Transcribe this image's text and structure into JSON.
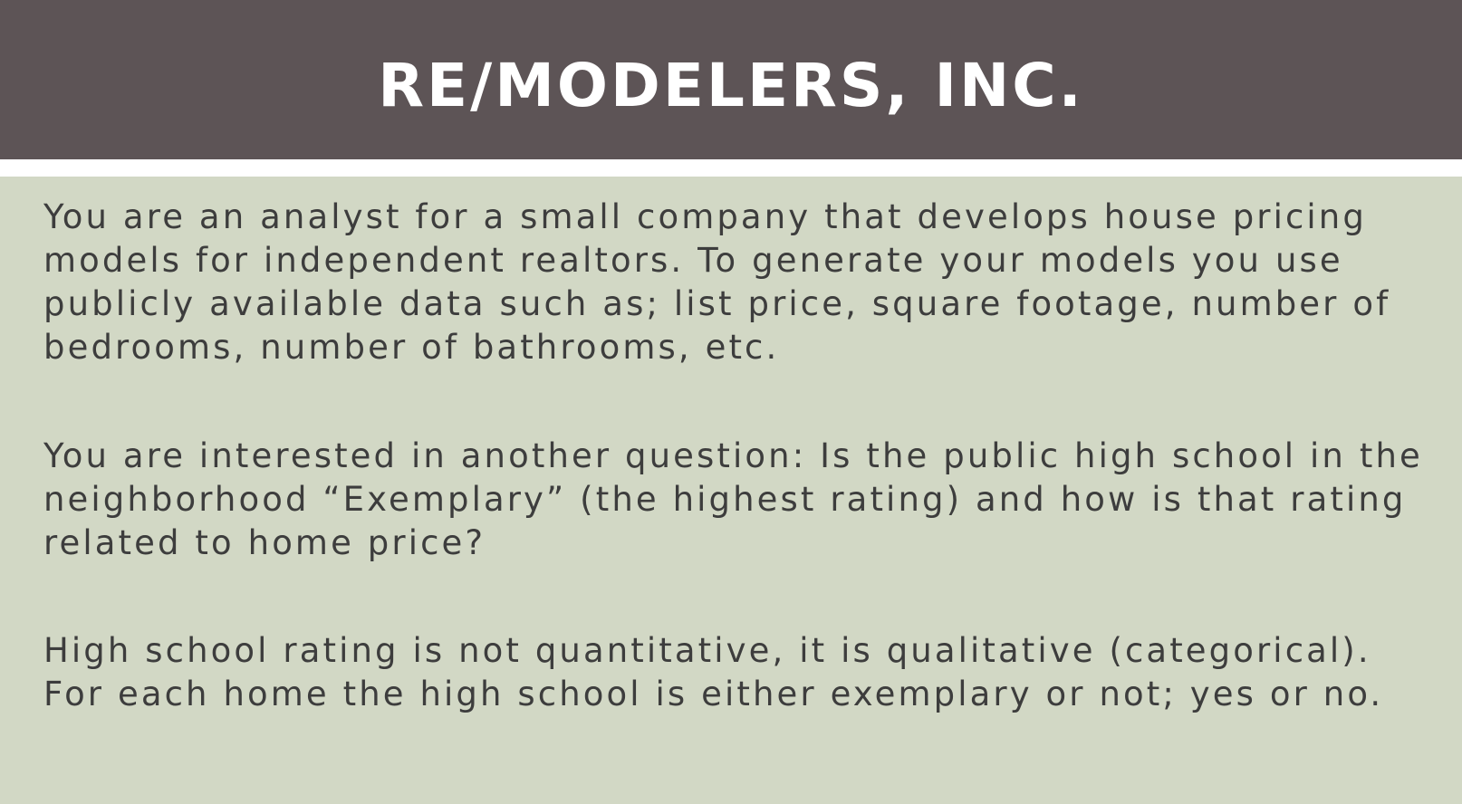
{
  "slide": {
    "title": "RE/MODELERS, INC.",
    "paragraphs": [
      "You are an analyst for a small company that develops house pricing models for independent realtors. To generate your models you use publicly available data such as; list price, square footage, number of bedrooms, number of bathrooms, etc.",
      "You are interested in another question: Is the public high school in the neighborhood “Exemplary” (the highest rating) and how is that rating related to home price?",
      "High school rating is not quantitative, it is qualitative (categorical). For each home the high school is either exemplary or not; yes or no."
    ]
  },
  "colors": {
    "title_bar": "#5d5456",
    "title_text": "#ffffff",
    "body_background": "#d2d8c5",
    "body_text": "#3d3d3d"
  }
}
